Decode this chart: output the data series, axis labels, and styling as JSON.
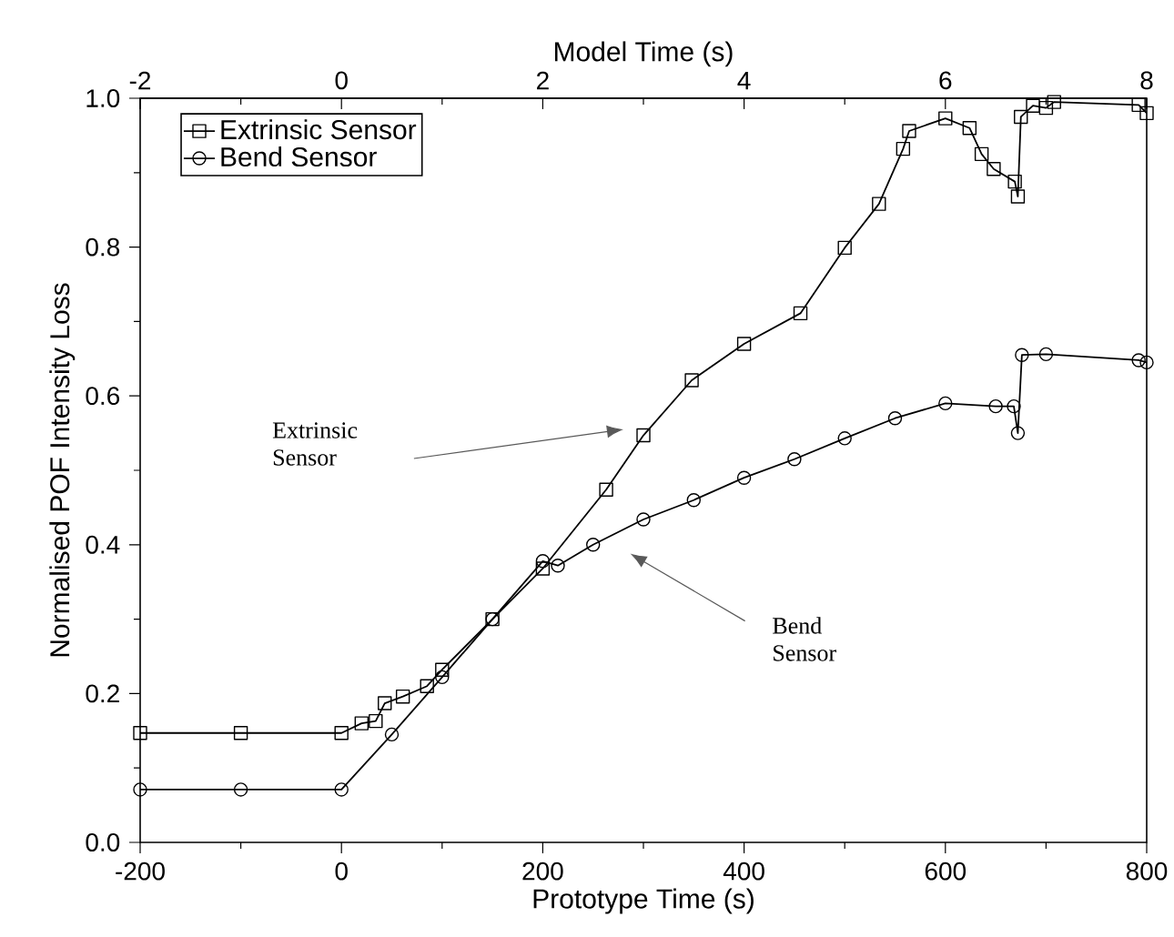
{
  "chart_data": {
    "type": "line",
    "xlabel": "Prototype Time (s)",
    "ylabel": "Normalised POF Intensity Loss",
    "x2label": "Model Time (s)",
    "xlim": [
      -200,
      800
    ],
    "ylim": [
      0,
      1
    ],
    "x2lim": [
      -2,
      8
    ],
    "xticks": [
      -200,
      {
        "value": -100,
        "label": null
      },
      0,
      {
        "value": 100,
        "label": null
      },
      200,
      {
        "value": 300,
        "label": null
      },
      400,
      {
        "value": 500,
        "label": null
      },
      600,
      {
        "value": 700,
        "label": null
      },
      800
    ],
    "x2ticks": [
      -2,
      {
        "value": -1,
        "label": null
      },
      0,
      {
        "value": 1,
        "label": null
      },
      2,
      {
        "value": 3,
        "label": null
      },
      4,
      {
        "value": 5,
        "label": null
      },
      6,
      {
        "value": 7,
        "label": null
      },
      8
    ],
    "yticks": [
      {
        "value": 0,
        "label": "0.0"
      },
      {
        "value": 0.1,
        "label": null
      },
      {
        "value": 0.2,
        "label": "0.2"
      },
      {
        "value": 0.3,
        "label": null
      },
      {
        "value": 0.4,
        "label": "0.4"
      },
      {
        "value": 0.5,
        "label": null
      },
      {
        "value": 0.6,
        "label": "0.6"
      },
      {
        "value": 0.7,
        "label": null
      },
      {
        "value": 0.8,
        "label": "0.8"
      },
      {
        "value": 0.9,
        "label": null
      },
      {
        "value": 1,
        "label": "1.0"
      }
    ],
    "legend": "top left",
    "grid": false,
    "line_style": "solid",
    "series": [
      {
        "name": "Extrinsic Sensor",
        "color": "#000000",
        "marker": "square",
        "x": [
          -200,
          -100,
          0,
          20,
          34,
          43,
          61,
          85,
          100,
          150,
          200,
          263,
          300,
          348,
          400,
          456,
          500,
          534,
          558,
          564,
          600,
          624,
          636,
          648,
          669,
          672,
          675,
          687,
          700,
          708,
          792,
          800
        ],
        "values": [
          0.147,
          0.147,
          0.147,
          0.16,
          0.163,
          0.187,
          0.196,
          0.21,
          0.232,
          0.3,
          0.368,
          0.474,
          0.547,
          0.621,
          0.67,
          0.711,
          0.799,
          0.858,
          0.932,
          0.956,
          0.973,
          0.96,
          0.925,
          0.905,
          0.888,
          0.868,
          0.975,
          0.99,
          0.987,
          0.995,
          0.991,
          0.98
        ]
      },
      {
        "name": "Bend Sensor",
        "color": "#000000",
        "marker": "circle",
        "x": [
          -200,
          -100,
          0,
          50,
          100,
          150,
          200,
          215,
          250,
          300,
          350,
          400,
          450,
          500,
          550,
          600,
          650,
          668,
          672,
          676,
          700,
          792,
          800
        ],
        "values": [
          0.071,
          0.071,
          0.071,
          0.145,
          0.222,
          0.3,
          0.378,
          0.372,
          0.4,
          0.434,
          0.46,
          0.49,
          0.515,
          0.543,
          0.57,
          0.59,
          0.586,
          0.586,
          0.55,
          0.655,
          0.656,
          0.648,
          0.645
        ]
      }
    ],
    "annotations": [
      "Extrinsic Sensor",
      "Bend Sensor"
    ]
  }
}
